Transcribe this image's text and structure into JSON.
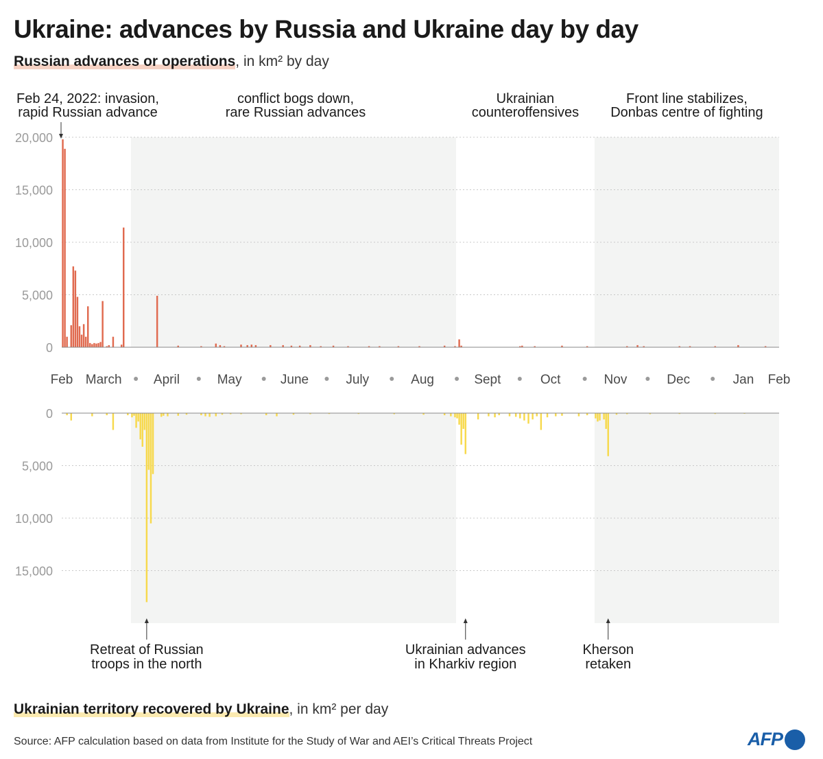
{
  "title": "Ukraine: advances by Russia and Ukraine day by day",
  "subtitle_top": {
    "highlight": "Russian advances or operations",
    "rest": ", in km² by day"
  },
  "subtitle_bottom": {
    "highlight": "Ukrainian territory recovered by Ukraine",
    "rest": ", in km² per day"
  },
  "source": "Source: AFP calculation based on data from Institute for the Study of War and AEI’s Critical Threats Project",
  "logo": "AFP",
  "colors": {
    "russia": "#e06a4f",
    "ukraine": "#f7d94c",
    "shade": "#f3f4f3",
    "grid": "#c8c8c8"
  },
  "chart_data": {
    "type": "bar",
    "x_start": "2022-02-24",
    "x_end": "2023-02-01",
    "months": [
      {
        "label": "Feb",
        "date": "2022-02-24"
      },
      {
        "label": "March",
        "date": "2022-03-16"
      },
      {
        "label": "April",
        "date": "2022-04-15"
      },
      {
        "label": "May",
        "date": "2022-05-15"
      },
      {
        "label": "June",
        "date": "2022-06-15"
      },
      {
        "label": "July",
        "date": "2022-07-15"
      },
      {
        "label": "Aug",
        "date": "2022-08-15"
      },
      {
        "label": "Sept",
        "date": "2022-09-15"
      },
      {
        "label": "Oct",
        "date": "2022-10-15"
      },
      {
        "label": "Nov",
        "date": "2022-11-15"
      },
      {
        "label": "Dec",
        "date": "2022-12-15"
      },
      {
        "label": "Jan",
        "date": "2023-01-15"
      },
      {
        "label": "Feb",
        "date": "2023-02-01"
      }
    ],
    "month_dots": [
      "2022-04-01",
      "2022-05-01",
      "2022-06-01",
      "2022-07-01",
      "2022-08-01",
      "2022-09-01",
      "2022-10-01",
      "2022-11-01",
      "2022-12-01",
      "2023-01-01"
    ],
    "periods": [
      {
        "start": "2022-02-24",
        "end": "2022-03-29",
        "shaded": false,
        "label": [
          "Feb 24, 2022: invasion,",
          "rapid Russian advance"
        ]
      },
      {
        "start": "2022-03-29",
        "end": "2022-08-31",
        "shaded": true,
        "label": [
          "conflict bogs down,",
          "rare Russian advances"
        ]
      },
      {
        "start": "2022-08-31",
        "end": "2022-11-05",
        "shaded": false,
        "label": [
          "Ukrainian",
          "counteroffensives"
        ]
      },
      {
        "start": "2022-11-05",
        "end": "2023-02-01",
        "shaded": true,
        "label": [
          "Front line stabilizes,",
          "Donbas centre of fighting"
        ]
      }
    ],
    "series": [
      {
        "name": "Russian advances or operations",
        "ylim": [
          0,
          20000
        ],
        "yticks": [
          "0",
          "5,000",
          "10,000",
          "15,000",
          "20,000"
        ],
        "points": [
          [
            "2022-02-24",
            19800
          ],
          [
            "2022-02-25",
            18900
          ],
          [
            "2022-02-26",
            1000
          ],
          [
            "2022-02-27",
            0
          ],
          [
            "2022-02-28",
            2100
          ],
          [
            "2022-03-01",
            7700
          ],
          [
            "2022-03-02",
            7300
          ],
          [
            "2022-03-03",
            4800
          ],
          [
            "2022-03-04",
            2000
          ],
          [
            "2022-03-05",
            1200
          ],
          [
            "2022-03-06",
            2200
          ],
          [
            "2022-03-07",
            1000
          ],
          [
            "2022-03-08",
            3900
          ],
          [
            "2022-03-09",
            400
          ],
          [
            "2022-03-10",
            300
          ],
          [
            "2022-03-11",
            400
          ],
          [
            "2022-03-12",
            350
          ],
          [
            "2022-03-13",
            400
          ],
          [
            "2022-03-14",
            500
          ],
          [
            "2022-03-15",
            4400
          ],
          [
            "2022-03-17",
            100
          ],
          [
            "2022-03-18",
            200
          ],
          [
            "2022-03-20",
            1000
          ],
          [
            "2022-03-24",
            250
          ],
          [
            "2022-03-25",
            11400
          ],
          [
            "2022-04-10",
            4900
          ],
          [
            "2022-04-20",
            150
          ],
          [
            "2022-05-01",
            100
          ],
          [
            "2022-05-08",
            350
          ],
          [
            "2022-05-10",
            200
          ],
          [
            "2022-05-12",
            100
          ],
          [
            "2022-05-20",
            250
          ],
          [
            "2022-05-23",
            200
          ],
          [
            "2022-05-25",
            250
          ],
          [
            "2022-05-27",
            200
          ],
          [
            "2022-06-03",
            200
          ],
          [
            "2022-06-09",
            200
          ],
          [
            "2022-06-13",
            150
          ],
          [
            "2022-06-17",
            150
          ],
          [
            "2022-06-22",
            200
          ],
          [
            "2022-06-27",
            100
          ],
          [
            "2022-07-03",
            150
          ],
          [
            "2022-07-10",
            100
          ],
          [
            "2022-07-20",
            100
          ],
          [
            "2022-07-25",
            100
          ],
          [
            "2022-08-03",
            100
          ],
          [
            "2022-08-13",
            100
          ],
          [
            "2022-08-25",
            150
          ],
          [
            "2022-08-30",
            100
          ],
          [
            "2022-09-01",
            750
          ],
          [
            "2022-09-02",
            150
          ],
          [
            "2022-09-30",
            100
          ],
          [
            "2022-10-01",
            150
          ],
          [
            "2022-10-07",
            100
          ],
          [
            "2022-10-20",
            150
          ],
          [
            "2022-11-01",
            100
          ],
          [
            "2022-11-20",
            100
          ],
          [
            "2022-11-25",
            200
          ],
          [
            "2022-11-28",
            100
          ],
          [
            "2022-12-15",
            100
          ],
          [
            "2022-12-20",
            100
          ],
          [
            "2023-01-01",
            100
          ],
          [
            "2023-01-12",
            200
          ],
          [
            "2023-01-25",
            100
          ]
        ]
      },
      {
        "name": "Ukrainian territory recovered by Ukraine",
        "ylim": [
          0,
          20000
        ],
        "yticks": [
          "0",
          "5,000",
          "10,000",
          "15,000"
        ],
        "points": [
          [
            "2022-02-26",
            200
          ],
          [
            "2022-02-28",
            700
          ],
          [
            "2022-03-10",
            300
          ],
          [
            "2022-03-17",
            200
          ],
          [
            "2022-03-20",
            1600
          ],
          [
            "2022-03-27",
            200
          ],
          [
            "2022-03-29",
            400
          ],
          [
            "2022-03-30",
            250
          ],
          [
            "2022-03-31",
            1400
          ],
          [
            "2022-04-01",
            800
          ],
          [
            "2022-04-02",
            2500
          ],
          [
            "2022-04-03",
            3200
          ],
          [
            "2022-04-04",
            1600
          ],
          [
            "2022-04-05",
            18000
          ],
          [
            "2022-04-06",
            5400
          ],
          [
            "2022-04-07",
            10500
          ],
          [
            "2022-04-08",
            5800
          ],
          [
            "2022-04-12",
            350
          ],
          [
            "2022-04-13",
            250
          ],
          [
            "2022-04-15",
            300
          ],
          [
            "2022-04-20",
            250
          ],
          [
            "2022-04-24",
            150
          ],
          [
            "2022-05-01",
            200
          ],
          [
            "2022-05-03",
            300
          ],
          [
            "2022-05-05",
            350
          ],
          [
            "2022-05-08",
            300
          ],
          [
            "2022-05-11",
            150
          ],
          [
            "2022-05-15",
            100
          ],
          [
            "2022-05-20",
            100
          ],
          [
            "2022-06-01",
            200
          ],
          [
            "2022-06-06",
            300
          ],
          [
            "2022-06-14",
            150
          ],
          [
            "2022-06-22",
            100
          ],
          [
            "2022-07-01",
            80
          ],
          [
            "2022-07-15",
            80
          ],
          [
            "2022-08-01",
            100
          ],
          [
            "2022-08-15",
            150
          ],
          [
            "2022-08-25",
            200
          ],
          [
            "2022-08-28",
            300
          ],
          [
            "2022-08-30",
            400
          ],
          [
            "2022-08-31",
            500
          ],
          [
            "2022-09-01",
            1100
          ],
          [
            "2022-09-02",
            3000
          ],
          [
            "2022-09-03",
            1500
          ],
          [
            "2022-09-04",
            3900
          ],
          [
            "2022-09-10",
            600
          ],
          [
            "2022-09-15",
            300
          ],
          [
            "2022-09-18",
            400
          ],
          [
            "2022-09-20",
            200
          ],
          [
            "2022-09-25",
            300
          ],
          [
            "2022-09-28",
            350
          ],
          [
            "2022-09-30",
            500
          ],
          [
            "2022-10-02",
            700
          ],
          [
            "2022-10-04",
            1000
          ],
          [
            "2022-10-06",
            600
          ],
          [
            "2022-10-08",
            300
          ],
          [
            "2022-10-10",
            1600
          ],
          [
            "2022-10-13",
            400
          ],
          [
            "2022-10-17",
            300
          ],
          [
            "2022-10-20",
            250
          ],
          [
            "2022-10-28",
            300
          ],
          [
            "2022-11-01",
            200
          ],
          [
            "2022-11-05",
            500
          ],
          [
            "2022-11-06",
            800
          ],
          [
            "2022-11-07",
            700
          ],
          [
            "2022-11-09",
            600
          ],
          [
            "2022-11-10",
            1500
          ],
          [
            "2022-11-11",
            4100
          ],
          [
            "2022-11-15",
            150
          ],
          [
            "2022-11-20",
            100
          ],
          [
            "2022-12-01",
            100
          ],
          [
            "2022-12-15",
            80
          ],
          [
            "2023-01-01",
            80
          ],
          [
            "2023-01-15",
            60
          ]
        ]
      }
    ],
    "annotations_top": [
      {
        "date": "2022-02-24"
      }
    ],
    "annotations_bottom": [
      {
        "date": "2022-04-05",
        "label": [
          "Retreat of Russian",
          "troops in the north"
        ]
      },
      {
        "date": "2022-09-04",
        "label": [
          "Ukrainian advances",
          "in Kharkiv region"
        ]
      },
      {
        "date": "2022-11-11",
        "label": [
          "Kherson",
          "retaken"
        ]
      }
    ]
  }
}
